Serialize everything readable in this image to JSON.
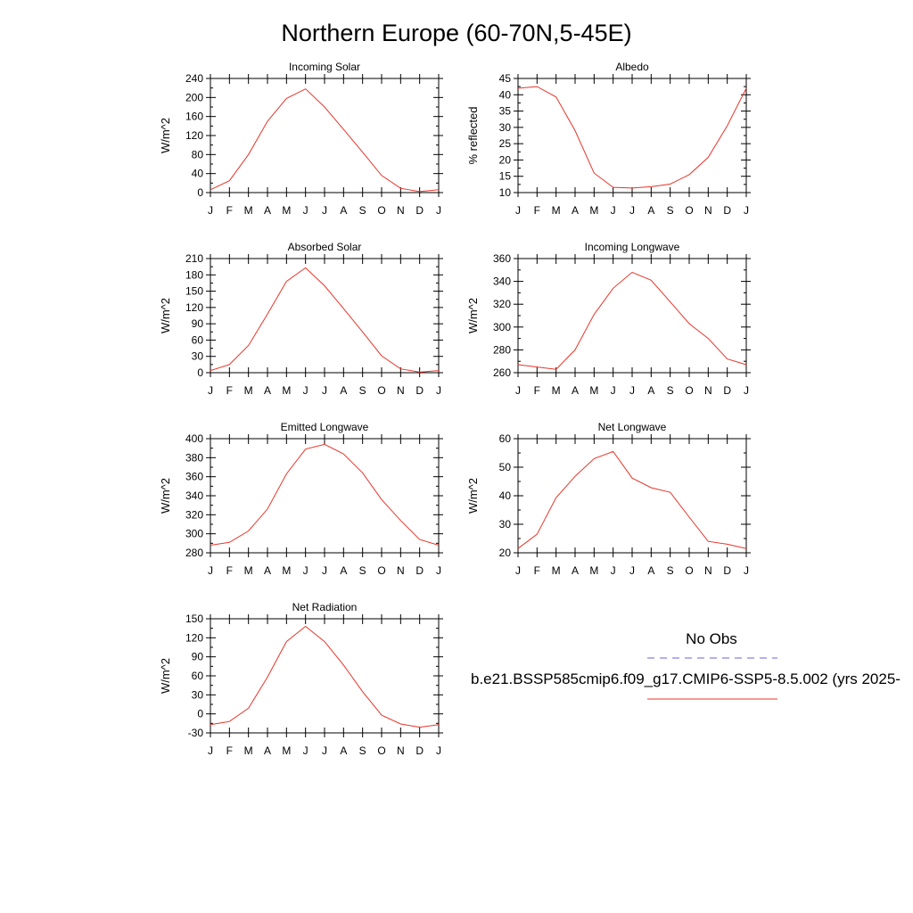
{
  "figure_title": "Northern Europe (60-70N,5-45E)",
  "legend": {
    "obs_label": "No Obs",
    "obs_color": "#6666dd",
    "model_label": "b.e21.BSSP585cmip6.f09_g17.CMIP6-SSP5-8.5.002 (yrs 2025-",
    "model_color": "#e8352a"
  },
  "chart_data": [
    {
      "type": "line",
      "title": "Incoming Solar",
      "ylabel": "W/m^2",
      "categories": [
        "J",
        "F",
        "M",
        "A",
        "M",
        "J",
        "J",
        "A",
        "S",
        "O",
        "N",
        "D",
        "J"
      ],
      "ylim": [
        0,
        240
      ],
      "yticks": [
        0,
        40,
        80,
        120,
        160,
        200,
        240
      ],
      "series": [
        {
          "values": [
            6,
            25,
            80,
            150,
            198,
            218,
            180,
            133,
            85,
            36,
            9,
            2,
            6
          ]
        }
      ]
    },
    {
      "type": "line",
      "title": "Albedo",
      "ylabel": "% reflected",
      "categories": [
        "J",
        "F",
        "M",
        "A",
        "M",
        "J",
        "J",
        "A",
        "S",
        "O",
        "N",
        "D",
        "J"
      ],
      "ylim": [
        10,
        45
      ],
      "yticks": [
        10,
        15,
        20,
        25,
        30,
        35,
        40,
        45
      ],
      "series": [
        {
          "values": [
            42,
            42.5,
            39.3,
            29,
            16,
            11.6,
            11.4,
            11.8,
            12.6,
            15.5,
            20.8,
            30.5,
            42
          ]
        }
      ]
    },
    {
      "type": "line",
      "title": "Absorbed Solar",
      "ylabel": "W/m^2",
      "categories": [
        "J",
        "F",
        "M",
        "A",
        "M",
        "J",
        "J",
        "A",
        "S",
        "O",
        "N",
        "D",
        "J"
      ],
      "ylim": [
        0,
        210
      ],
      "yticks": [
        0,
        30,
        60,
        90,
        120,
        150,
        180,
        210
      ],
      "series": [
        {
          "values": [
            4,
            15,
            50,
            108,
            168,
            193,
            160,
            118,
            75,
            31,
            7,
            1,
            4
          ]
        }
      ]
    },
    {
      "type": "line",
      "title": "Incoming Longwave",
      "ylabel": "W/m^2",
      "categories": [
        "J",
        "F",
        "M",
        "A",
        "M",
        "J",
        "J",
        "A",
        "S",
        "O",
        "N",
        "D",
        "J"
      ],
      "ylim": [
        260,
        360
      ],
      "yticks": [
        260,
        280,
        300,
        320,
        340,
        360
      ],
      "series": [
        {
          "values": [
            267,
            265,
            263,
            280,
            311,
            334,
            348,
            341,
            322,
            303,
            290,
            272,
            267
          ]
        }
      ]
    },
    {
      "type": "line",
      "title": "Emitted Longwave",
      "ylabel": "W/m^2",
      "categories": [
        "J",
        "F",
        "M",
        "A",
        "M",
        "J",
        "J",
        "A",
        "S",
        "O",
        "N",
        "D",
        "J"
      ],
      "ylim": [
        280,
        400
      ],
      "yticks": [
        280,
        300,
        320,
        340,
        360,
        380,
        400
      ],
      "series": [
        {
          "values": [
            288,
            291,
            303,
            326,
            363,
            389,
            394,
            384,
            364,
            336,
            314,
            294,
            288
          ]
        }
      ]
    },
    {
      "type": "line",
      "title": "Net Longwave",
      "ylabel": "W/m^2",
      "categories": [
        "J",
        "F",
        "M",
        "A",
        "M",
        "J",
        "J",
        "A",
        "S",
        "O",
        "N",
        "D",
        "J"
      ],
      "ylim": [
        20,
        60
      ],
      "yticks": [
        20,
        30,
        40,
        50,
        60
      ],
      "series": [
        {
          "values": [
            21.5,
            26.5,
            39.3,
            46.8,
            53,
            55.5,
            46.2,
            42.8,
            41.2,
            32.5,
            24,
            23,
            21.5
          ]
        }
      ]
    },
    {
      "type": "line",
      "title": "Net Radiation",
      "ylabel": "W/m^2",
      "categories": [
        "J",
        "F",
        "M",
        "A",
        "M",
        "J",
        "J",
        "A",
        "S",
        "O",
        "N",
        "D",
        "J"
      ],
      "ylim": [
        -30,
        150
      ],
      "yticks": [
        -30,
        0,
        30,
        60,
        90,
        120,
        150
      ],
      "series": [
        {
          "values": [
            -17,
            -12,
            9,
            58,
            114,
            138,
            114,
            77,
            35,
            -2,
            -16,
            -21,
            -17
          ]
        }
      ]
    }
  ]
}
